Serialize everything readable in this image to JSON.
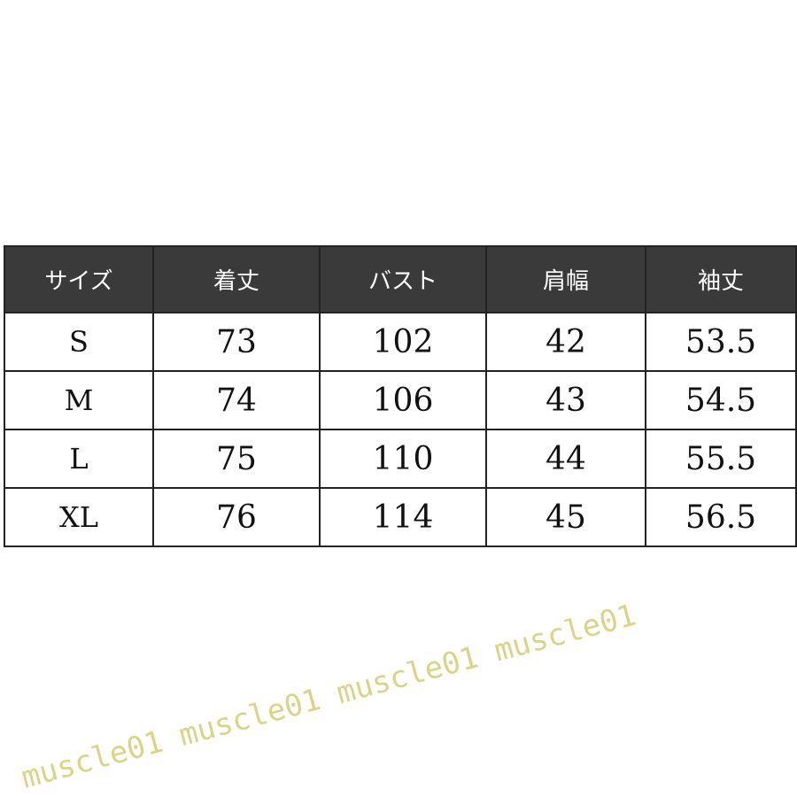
{
  "table": {
    "headers": [
      "サイズ",
      "着丈",
      "バスト",
      "肩幅",
      "袖丈"
    ],
    "rows": [
      [
        "S",
        "73",
        "102",
        "42",
        "53.5"
      ],
      [
        "M",
        "74",
        "106",
        "43",
        "54.5"
      ],
      [
        "L",
        "75",
        "110",
        "44",
        "55.5"
      ],
      [
        "XL",
        "76",
        "114",
        "45",
        "56.5"
      ]
    ],
    "header_bg": "#3a3a3a"
  },
  "watermark": "muscle01 muscle01 muscle01 muscle01"
}
